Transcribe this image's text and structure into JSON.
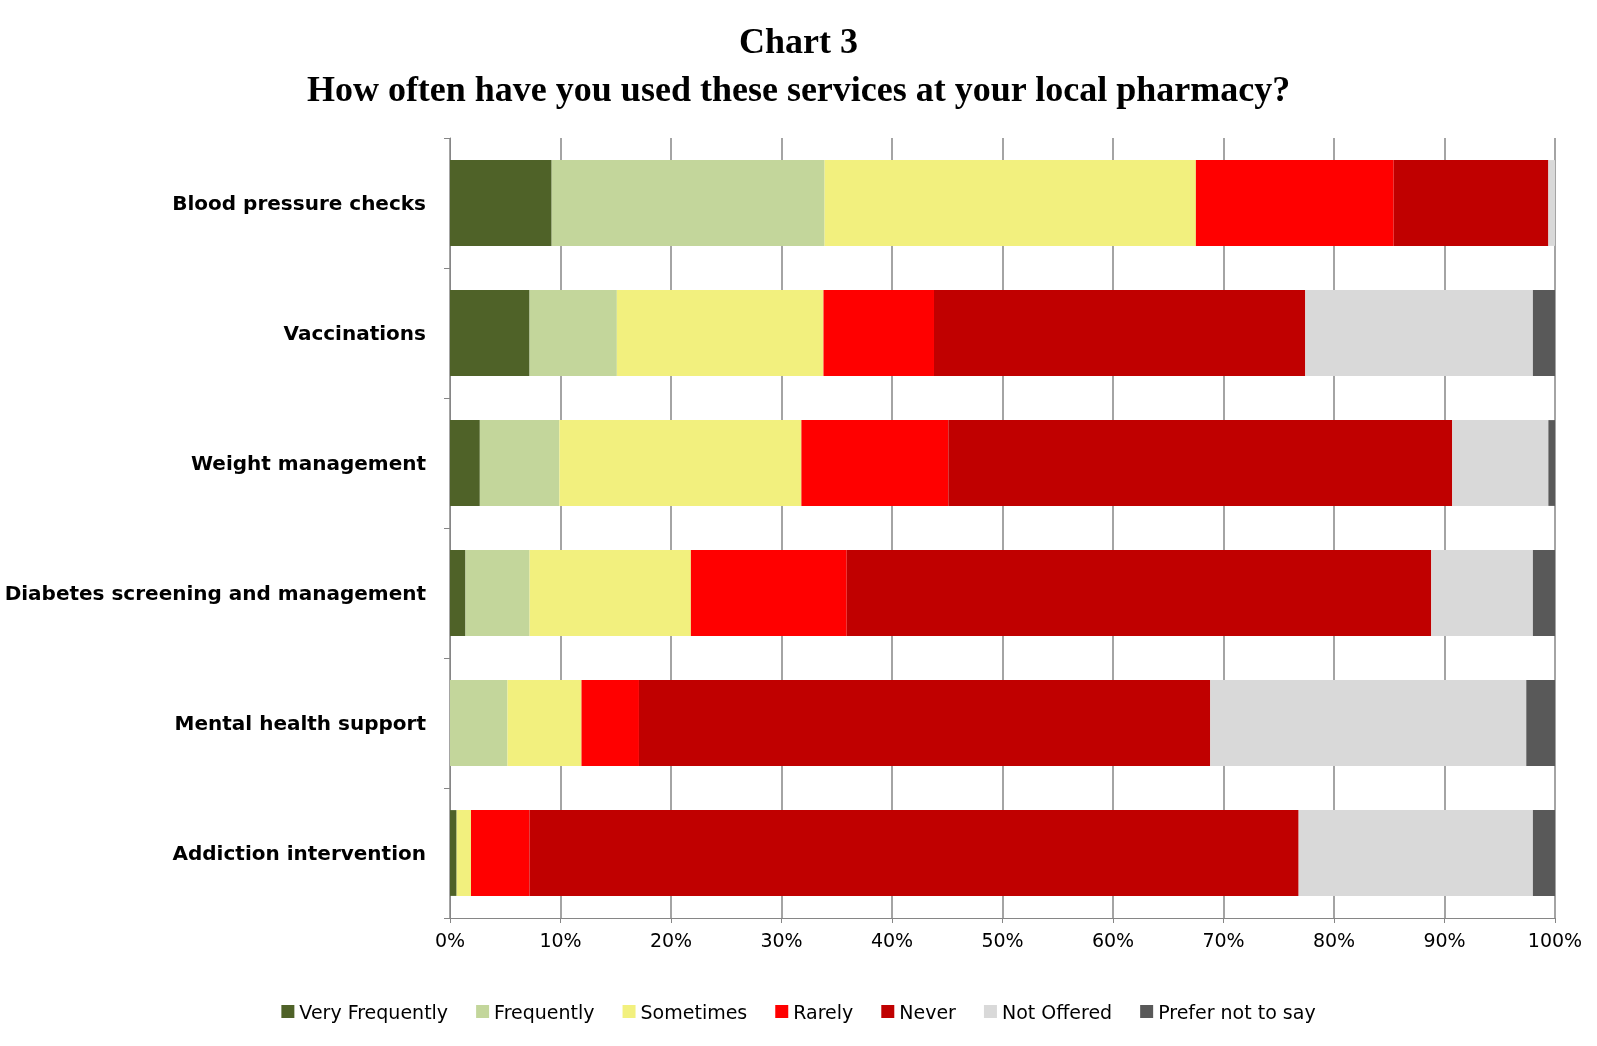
{
  "chart_data": {
    "type": "bar",
    "title": "Chart 3",
    "subtitle": "How often have you used these services at your local pharmacy?",
    "orientation": "horizontal",
    "stacked": true,
    "categories": [
      "Blood pressure checks",
      "Vaccinations",
      "Weight management",
      "Diabetes screening and management",
      "Mental health support",
      "Addiction intervention"
    ],
    "series": [
      {
        "name": "Very Frequently",
        "color": "#4f6228",
        "values": [
          9.2,
          7.2,
          2.7,
          1.4,
          0,
          0.6
        ]
      },
      {
        "name": "Frequently",
        "color": "#c3d69b",
        "values": [
          24.7,
          7.9,
          7.2,
          5.8,
          5.2,
          0
        ]
      },
      {
        "name": "Sometimes",
        "color": "#f2f07e",
        "values": [
          33.6,
          18.7,
          21.9,
          14.6,
          6.7,
          1.3
        ]
      },
      {
        "name": "Rarely",
        "color": "#ff0000",
        "values": [
          17.9,
          10.0,
          13.3,
          14.1,
          5.2,
          5.3
        ]
      },
      {
        "name": "Never",
        "color": "#c00000",
        "values": [
          14.0,
          33.6,
          45.6,
          52.9,
          51.7,
          69.6
        ]
      },
      {
        "name": "Not Offered",
        "color": "#d9d9d9",
        "values": [
          0.6,
          20.6,
          8.7,
          9.2,
          28.6,
          21.2
        ]
      },
      {
        "name": "Prefer not to say",
        "color": "#595959",
        "values": [
          0,
          2.0,
          0.6,
          2.0,
          2.6,
          2.0
        ]
      }
    ],
    "xlim": [
      0,
      100
    ],
    "xticks": [
      {
        "value": 0,
        "label": "0%"
      },
      {
        "value": 10,
        "label": "10%"
      },
      {
        "value": 20,
        "label": "20%"
      },
      {
        "value": 30,
        "label": "30%"
      },
      {
        "value": 40,
        "label": "40%"
      },
      {
        "value": 50,
        "label": "50%"
      },
      {
        "value": 60,
        "label": "60%"
      },
      {
        "value": 70,
        "label": "70%"
      },
      {
        "value": 80,
        "label": "80%"
      },
      {
        "value": 90,
        "label": "90%"
      },
      {
        "value": 100,
        "label": "100%"
      }
    ],
    "grid": "x",
    "legend": "bottom"
  }
}
